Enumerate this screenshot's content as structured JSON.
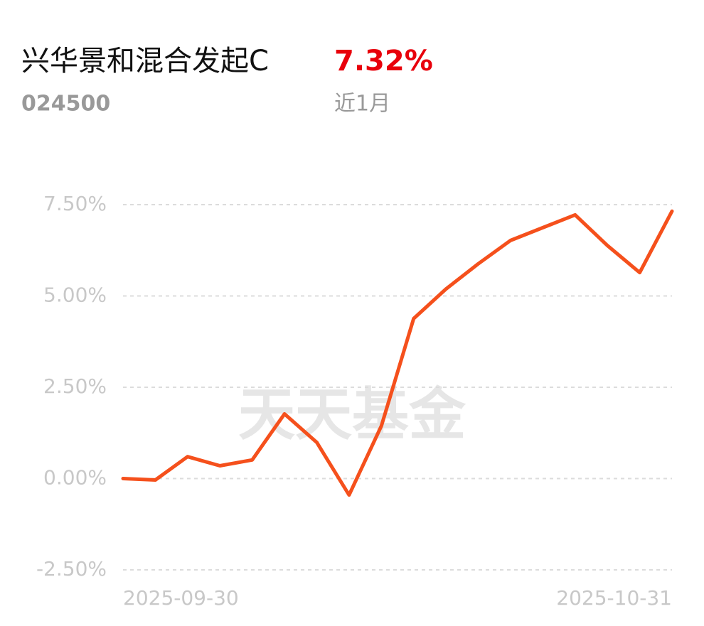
{
  "header": {
    "title": "兴华景和混合发起C",
    "return_label": "7.32%",
    "code": "024500",
    "period": "近1月"
  },
  "chart_data": {
    "type": "line",
    "watermark": "天天基金",
    "categories": [
      "2025-09-30",
      null,
      null,
      null,
      null,
      null,
      null,
      null,
      null,
      null,
      null,
      null,
      null,
      null,
      null,
      null,
      null,
      "2025-10-31"
    ],
    "series": [
      {
        "color": "#f5501c",
        "values": [
          0.0,
          -0.04,
          0.6,
          0.35,
          0.51,
          1.77,
          0.99,
          -0.45,
          1.44,
          4.38,
          5.19,
          5.88,
          6.52,
          6.87,
          7.22,
          6.38,
          5.64,
          7.32
        ]
      }
    ],
    "ylim": [
      -2.5,
      7.5
    ],
    "yticks": [
      {
        "value": 7.5,
        "label": "7.50%"
      },
      {
        "value": 5,
        "label": "5.00%"
      },
      {
        "value": 2.5,
        "label": "2.50%"
      },
      {
        "value": 0,
        "label": "0.00%"
      },
      {
        "value": -2.5,
        "label": "-2.50%"
      }
    ],
    "grid": true
  }
}
